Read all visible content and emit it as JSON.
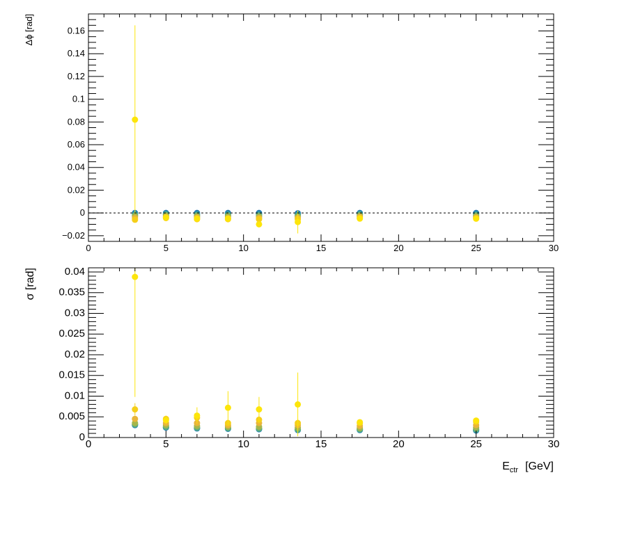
{
  "chart_data": [
    {
      "type": "scatter",
      "ylabel": "Δϕ  [rad]",
      "xlabel": "",
      "xlim": [
        0,
        30
      ],
      "ylim": [
        -0.025,
        0.175
      ],
      "x_ticks": [
        0,
        5,
        10,
        15,
        20,
        25,
        30
      ],
      "y_ticks": [
        -0.02,
        0,
        0.02,
        0.04,
        0.06,
        0.08,
        0.1,
        0.12,
        0.14,
        0.16
      ],
      "y_tick_labels": [
        "−0.02",
        "0",
        "0.02",
        "0.04",
        "0.06",
        "0.08",
        "0.1",
        "0.12",
        "0.14",
        "0.16"
      ],
      "reference_line": {
        "y": 0,
        "style": "dashed"
      },
      "grid": false,
      "x": [
        3,
        5,
        7,
        9,
        11,
        13.5,
        17.5,
        25
      ],
      "series": [
        {
          "color": "#1f78b4",
          "values": [
            0.0,
            0.0,
            0.0,
            0.0,
            0.0,
            -0.0003,
            0.0,
            0.0
          ],
          "errors": [
            0.001,
            0.0008,
            0.0008,
            0.0008,
            0.001,
            0.0012,
            0.0008,
            0.0008
          ]
        },
        {
          "color": "#2f97a6",
          "values": [
            -0.001,
            -0.0008,
            -0.001,
            -0.001,
            -0.0012,
            -0.0015,
            -0.0008,
            -0.001
          ],
          "errors": [
            0.0012,
            0.001,
            0.001,
            0.001,
            0.0012,
            0.0015,
            0.001,
            0.001
          ]
        },
        {
          "color": "#5fae7c",
          "values": [
            -0.002,
            -0.0015,
            -0.002,
            -0.002,
            -0.0022,
            -0.0025,
            -0.0015,
            -0.002
          ],
          "errors": [
            0.0012,
            0.001,
            0.001,
            0.001,
            0.0012,
            0.0015,
            0.001,
            0.001
          ]
        },
        {
          "color": "#a4b64c",
          "values": [
            -0.003,
            -0.0025,
            -0.003,
            -0.003,
            -0.0032,
            -0.0035,
            -0.0025,
            -0.003
          ],
          "errors": [
            0.0015,
            0.0012,
            0.0012,
            0.0012,
            0.0015,
            0.002,
            0.0012,
            0.0012
          ]
        },
        {
          "color": "#e8b53a",
          "values": [
            -0.0045,
            -0.0035,
            -0.004,
            -0.0045,
            -0.0045,
            -0.0045,
            -0.0035,
            -0.004
          ],
          "errors": [
            0.002,
            0.0015,
            0.0015,
            0.0015,
            0.002,
            0.0025,
            0.0015,
            0.0015
          ]
        },
        {
          "color": "#f5cf1a",
          "values": [
            -0.006,
            -0.0045,
            -0.0055,
            -0.0055,
            -0.0055,
            -0.0055,
            -0.0045,
            -0.005
          ],
          "errors": [
            0.002,
            0.0015,
            0.0015,
            0.002,
            0.0025,
            0.003,
            0.0015,
            0.0015
          ]
        },
        {
          "color": "#fde50a",
          "values": [
            0.082,
            -0.004,
            -0.005,
            -0.005,
            -0.01,
            -0.008,
            -0.005,
            -0.005
          ],
          "errors": [
            0.083,
            0.0015,
            0.0015,
            0.002,
            0.002,
            0.01,
            0.0015,
            0.0015
          ]
        }
      ]
    },
    {
      "type": "scatter",
      "ylabel": "σ  [rad]",
      "xlabel": "E_ctr  [GeV]",
      "xlabel_main": "E",
      "xlabel_sub": "ctr",
      "xlabel_unit": "[GeV]",
      "xlim": [
        0,
        30
      ],
      "ylim": [
        0,
        0.041
      ],
      "x_ticks": [
        0,
        5,
        10,
        15,
        20,
        25,
        30
      ],
      "y_ticks": [
        0,
        0.005,
        0.01,
        0.015,
        0.02,
        0.025,
        0.03,
        0.035,
        0.04
      ],
      "y_tick_labels": [
        "0",
        "0.005",
        "0.01",
        "0.015",
        "0.02",
        "0.025",
        "0.03",
        "0.035",
        "0.04"
      ],
      "grid": false,
      "x": [
        3,
        5,
        7,
        9,
        11,
        13.5,
        17.5,
        25
      ],
      "series": [
        {
          "color": "#1f78b4",
          "values": [
            0.003,
            0.0024,
            0.0022,
            0.0021,
            0.002,
            0.0018,
            0.0018,
            0.0017
          ],
          "errors": [
            0.0003,
            0.0003,
            0.0003,
            0.0003,
            0.0003,
            0.0003,
            0.0003,
            0.0003
          ]
        },
        {
          "color": "#2f97a6",
          "values": [
            0.0031,
            0.0025,
            0.0023,
            0.0022,
            0.0021,
            0.0019,
            0.0019,
            0.0018
          ],
          "errors": [
            0.0003,
            0.0003,
            0.0003,
            0.0003,
            0.0003,
            0.0003,
            0.0003,
            0.0003
          ]
        },
        {
          "color": "#5fae7c",
          "values": [
            0.0032,
            0.0026,
            0.0024,
            0.0023,
            0.0022,
            0.002,
            0.002,
            0.002
          ],
          "errors": [
            0.0003,
            0.0003,
            0.0003,
            0.0003,
            0.0003,
            0.0003,
            0.0003,
            0.0003
          ]
        },
        {
          "color": "#a4b64c",
          "values": [
            0.0035,
            0.003,
            0.0028,
            0.0026,
            0.0026,
            0.0024,
            0.0023,
            0.0024
          ],
          "errors": [
            0.0004,
            0.0004,
            0.0004,
            0.0004,
            0.0004,
            0.0004,
            0.0004,
            0.0004
          ]
        },
        {
          "color": "#e8b53a",
          "values": [
            0.0045,
            0.0035,
            0.0035,
            0.003,
            0.0035,
            0.003,
            0.0028,
            0.003
          ],
          "errors": [
            0.0006,
            0.0005,
            0.0005,
            0.0005,
            0.0005,
            0.0005,
            0.0005,
            0.0005
          ]
        },
        {
          "color": "#f5cf1a",
          "values": [
            0.0068,
            0.0045,
            0.0048,
            0.0035,
            0.0043,
            0.0035,
            0.0035,
            0.0038
          ],
          "errors": [
            0.0015,
            0.0008,
            0.0008,
            0.0008,
            0.001,
            0.001,
            0.0006,
            0.0006
          ]
        },
        {
          "color": "#fde50a",
          "values": [
            0.0388,
            0.0042,
            0.0053,
            0.0072,
            0.0068,
            0.008,
            0.0037,
            0.0041
          ],
          "errors": [
            0.029,
            0.001,
            0.002,
            0.004,
            0.003,
            0.0077,
            0.0006,
            0.0006
          ]
        }
      ]
    }
  ]
}
